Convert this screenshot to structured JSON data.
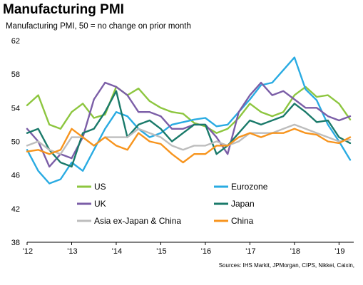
{
  "chart_data": {
    "type": "line",
    "title": "Manufacturing PMI",
    "subtitle": "Manufacturing PMI, 50 = no change on prior month",
    "source": "Sources: IHS Markit, JPMorgan, CIPS, Nikkei, Caixin,",
    "xlabel": "",
    "ylabel": "",
    "ylim": [
      38,
      62
    ],
    "yticks": [
      38,
      42,
      46,
      50,
      54,
      58,
      62
    ],
    "xlim": [
      2012.0,
      2019.33
    ],
    "xticks": [
      {
        "value": 2012,
        "label": "'12"
      },
      {
        "value": 2013,
        "label": "'13"
      },
      {
        "value": 2014,
        "label": "'14"
      },
      {
        "value": 2015,
        "label": "'15"
      },
      {
        "value": 2016,
        "label": "'16"
      },
      {
        "value": 2017,
        "label": "'17"
      },
      {
        "value": 2018,
        "label": "'18"
      },
      {
        "value": 2019,
        "label": "'19"
      }
    ],
    "grid": false,
    "legend_placement": "bottom-center",
    "x": [
      2012.0,
      2012.25,
      2012.5,
      2012.75,
      2013.0,
      2013.25,
      2013.5,
      2013.75,
      2014.0,
      2014.25,
      2014.5,
      2014.75,
      2015.0,
      2015.25,
      2015.5,
      2015.75,
      2016.0,
      2016.25,
      2016.5,
      2016.75,
      2017.0,
      2017.25,
      2017.5,
      2017.75,
      2018.0,
      2018.25,
      2018.5,
      2018.75,
      2019.0,
      2019.25
    ],
    "series": [
      {
        "name": "US",
        "color": "#8dc63f",
        "values": [
          54.3,
          55.5,
          52.0,
          51.5,
          53.5,
          54.5,
          52.8,
          53.2,
          56.5,
          55.5,
          56.3,
          54.8,
          54.0,
          53.5,
          53.3,
          52.2,
          51.8,
          51.0,
          51.5,
          52.8,
          54.5,
          53.5,
          53.0,
          53.5,
          55.5,
          56.5,
          55.3,
          55.5,
          54.5,
          52.6
        ]
      },
      {
        "name": "Eurozone",
        "color": "#29abe2",
        "values": [
          49.0,
          46.5,
          45.0,
          45.5,
          47.5,
          46.5,
          49.0,
          51.5,
          53.5,
          53.0,
          51.5,
          50.5,
          51.0,
          52.0,
          52.3,
          52.6,
          52.8,
          51.8,
          52.0,
          53.5,
          55.0,
          56.7,
          57.0,
          58.5,
          60.0,
          56.2,
          54.9,
          52.0,
          50.0,
          47.8
        ]
      },
      {
        "name": "UK",
        "color": "#7b5ea7",
        "values": [
          51.5,
          50.0,
          47.0,
          48.5,
          48.0,
          50.5,
          55.0,
          57.0,
          56.5,
          55.5,
          53.5,
          53.5,
          53.0,
          51.5,
          51.5,
          52.0,
          52.0,
          50.5,
          48.5,
          53.5,
          55.5,
          57.0,
          55.5,
          56.0,
          55.0,
          54.0,
          54.0,
          53.0,
          52.5,
          53.0
        ]
      },
      {
        "name": "Japan",
        "color": "#1a7a6a",
        "values": [
          51.0,
          51.5,
          49.0,
          47.5,
          47.0,
          51.0,
          51.5,
          53.5,
          56.0,
          50.5,
          52.0,
          52.5,
          51.5,
          50.0,
          51.0,
          52.0,
          52.0,
          48.5,
          49.5,
          51.0,
          52.5,
          52.0,
          52.5,
          53.0,
          54.5,
          53.5,
          52.3,
          52.5,
          50.5,
          49.8
        ]
      },
      {
        "name": "Asia ex-Japan & China",
        "color": "#bdbdbd",
        "values": [
          49.5,
          50.0,
          49.0,
          48.5,
          50.5,
          50.5,
          49.5,
          50.5,
          50.5,
          50.5,
          51.5,
          51.0,
          50.5,
          49.5,
          49.0,
          49.5,
          49.5,
          50.0,
          49.5,
          50.0,
          51.0,
          51.0,
          51.0,
          51.5,
          52.0,
          51.5,
          51.0,
          50.5,
          50.0,
          50.2
        ]
      },
      {
        "name": "China",
        "color": "#f7941d",
        "values": [
          48.8,
          49.0,
          48.5,
          49.0,
          51.5,
          50.5,
          49.5,
          50.5,
          49.5,
          49.0,
          51.0,
          50.0,
          49.7,
          48.5,
          47.5,
          48.5,
          48.5,
          49.5,
          49.5,
          50.5,
          51.0,
          50.5,
          51.0,
          51.0,
          51.5,
          51.0,
          50.8,
          50.0,
          49.8,
          50.5
        ]
      }
    ]
  }
}
